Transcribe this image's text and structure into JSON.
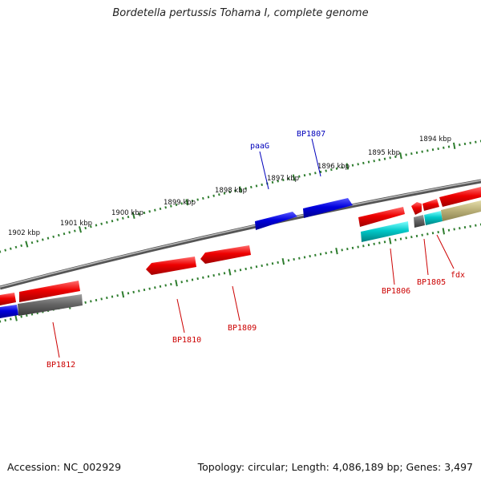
{
  "title": "Bordetella pertussis Tohama I, complete genome",
  "footer": {
    "accession": "Accession: NC_002929",
    "summary": "Topology: circular; Length: 4,086,189 bp; Genes: 3,497"
  },
  "colors": {
    "backbone": "#7a7a7a",
    "ticks": "#2e7d2e",
    "gene_red": "#ee0000",
    "gene_blue": "#0000dd",
    "gene_cyan": "#00c8c8",
    "gene_gray": "#666666",
    "gene_khaki": "#bcb27a",
    "label_red": "#cc0000",
    "label_blue": "#0000bb"
  },
  "scale": {
    "unit": "kbp",
    "labels": [
      "1902 kbp",
      "1901 kbp",
      "1900 kbp",
      "1899 kbp",
      "1898 kbp",
      "1897 kbp",
      "1896 kbp",
      "1895 kbp",
      "1894 kbp"
    ]
  },
  "gene_labels": [
    {
      "text": "paaG",
      "color": "label_blue"
    },
    {
      "text": "BP1807",
      "color": "label_blue"
    },
    {
      "text": "BP1806",
      "color": "label_red"
    },
    {
      "text": "BP1805",
      "color": "label_red"
    },
    {
      "text": "fdx",
      "color": "label_red"
    },
    {
      "text": "BP1810",
      "color": "label_red"
    },
    {
      "text": "BP1809",
      "color": "label_red"
    },
    {
      "text": "BP1812",
      "color": "label_red"
    }
  ]
}
